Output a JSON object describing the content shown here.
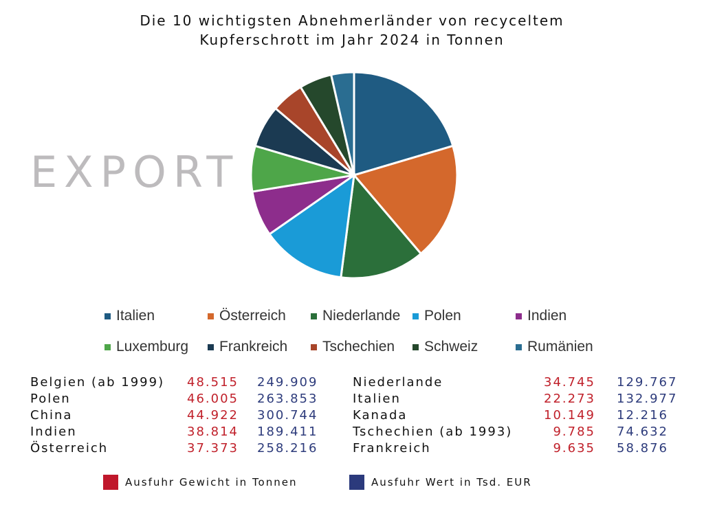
{
  "title_line1": "Die 10 wichtigsten Abnehmerländer von recyceltem",
  "title_line2": "Kupferschrott im Jahr 2024 in Tonnen",
  "watermark": "EXPORT",
  "chart_data": {
    "type": "pie",
    "slices": [
      {
        "label": "Italien",
        "value": 20,
        "color": "#1f5b82"
      },
      {
        "label": "Österreich",
        "value": 18,
        "color": "#d4682c"
      },
      {
        "label": "Niederlande",
        "value": 13,
        "color": "#2b6f3a"
      },
      {
        "label": "Polen",
        "value": 13,
        "color": "#1a9bd7"
      },
      {
        "label": "Indien",
        "value": 7,
        "color": "#8d2d8c"
      },
      {
        "label": "Luxemburg",
        "value": 7,
        "color": "#4ea649"
      },
      {
        "label": "Frankreich",
        "value": 6.5,
        "color": "#1b3a52"
      },
      {
        "label": "Tschechien",
        "value": 5,
        "color": "#a8452a"
      },
      {
        "label": "Schweiz",
        "value": 5,
        "color": "#25482c"
      },
      {
        "label": "Rumänien",
        "value": 3.5,
        "color": "#2a6d91"
      }
    ],
    "legend_placement": "bottom"
  },
  "table": {
    "left": [
      {
        "country": "Belgien (ab 1999)",
        "weight": "48.515",
        "value": "249.909"
      },
      {
        "country": "Polen",
        "weight": "46.005",
        "value": "263.853"
      },
      {
        "country": "China",
        "weight": "44.922",
        "value": "300.744"
      },
      {
        "country": "Indien",
        "weight": "38.814",
        "value": "189.411"
      },
      {
        "country": "Österreich",
        "weight": "37.373",
        "value": "258.216"
      }
    ],
    "right": [
      {
        "country": "Niederlande",
        "weight": "34.745",
        "value": "129.767"
      },
      {
        "country": "Italien",
        "weight": "22.273",
        "value": "132.977"
      },
      {
        "country": "Kanada",
        "weight": "10.149",
        "value": "12.216"
      },
      {
        "country": "Tschechien (ab 1993)",
        "weight": "9.785",
        "value": "74.632"
      },
      {
        "country": "Frankreich",
        "weight": "9.635",
        "value": "58.876"
      }
    ]
  },
  "footer": {
    "weight_label": "Ausfuhr Gewicht in Tonnen",
    "weight_color": "#c0172b",
    "value_label": "Ausfuhr Wert in Tsd. EUR",
    "value_color": "#2b3a7c"
  }
}
